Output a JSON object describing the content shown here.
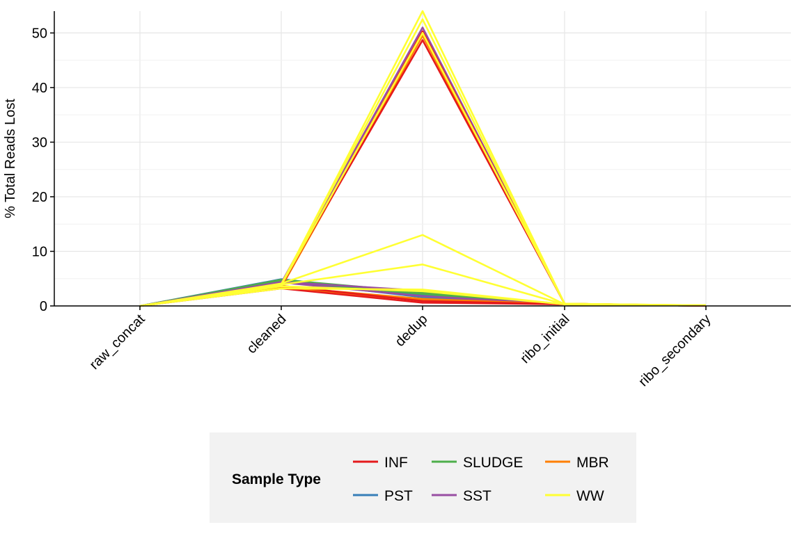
{
  "chart_data": {
    "type": "line",
    "title": "",
    "xlabel": "",
    "ylabel": "% Total Reads Lost",
    "categories": [
      "raw_concat",
      "cleaned",
      "dedup",
      "ribo_initial",
      "ribo_secondary"
    ],
    "ylim": [
      0,
      54
    ],
    "yticks": [
      0,
      10,
      20,
      30,
      40,
      50
    ],
    "grid": true,
    "legend": {
      "title": "Sample Type",
      "placement": "bottom",
      "entries": [
        {
          "label": "INF",
          "color": "#e41a1c"
        },
        {
          "label": "SLUDGE",
          "color": "#4daf4a"
        },
        {
          "label": "MBR",
          "color": "#ff7f00"
        },
        {
          "label": "PST",
          "color": "#377eb8"
        },
        {
          "label": "SST",
          "color": "#984ea3"
        },
        {
          "label": "WW",
          "color": "#ffff33"
        }
      ]
    },
    "series": [
      {
        "group": "PST",
        "color": "#377eb8",
        "values": [
          0,
          4.9,
          2.0,
          0.3,
          0.05
        ]
      },
      {
        "group": "PST",
        "color": "#377eb8",
        "values": [
          0,
          4.6,
          1.6,
          0.3,
          0.05
        ]
      },
      {
        "group": "SLUDGE",
        "color": "#4daf4a",
        "values": [
          0,
          4.8,
          2.5,
          0.3,
          0.05
        ]
      },
      {
        "group": "SLUDGE",
        "color": "#4daf4a",
        "values": [
          0,
          4.5,
          2.2,
          0.3,
          0.05
        ]
      },
      {
        "group": "SST",
        "color": "#984ea3",
        "values": [
          0,
          4.4,
          2.8,
          0.3,
          0.05
        ]
      },
      {
        "group": "SST",
        "color": "#984ea3",
        "values": [
          0,
          4.2,
          51.0,
          0.4,
          0.05
        ]
      },
      {
        "group": "SST",
        "color": "#984ea3",
        "values": [
          0,
          4.3,
          1.8,
          0.3,
          0.05
        ]
      },
      {
        "group": "MBR",
        "color": "#ff7f00",
        "values": [
          0,
          3.3,
          1.0,
          0.3,
          0.05
        ]
      },
      {
        "group": "MBR",
        "color": "#ff7f00",
        "values": [
          0,
          3.5,
          1.3,
          0.3,
          0.05
        ]
      },
      {
        "group": "MBR",
        "color": "#ff7f00",
        "values": [
          0,
          3.4,
          49.5,
          0.4,
          0.05
        ]
      },
      {
        "group": "INF",
        "color": "#e41a1c",
        "values": [
          0,
          3.9,
          48.7,
          0.4,
          0.05
        ]
      },
      {
        "group": "INF",
        "color": "#e41a1c",
        "values": [
          0,
          3.6,
          50.3,
          0.4,
          0.05
        ]
      },
      {
        "group": "INF",
        "color": "#e41a1c",
        "values": [
          0,
          3.2,
          0.6,
          0.3,
          0.05
        ]
      },
      {
        "group": "INF",
        "color": "#e41a1c",
        "values": [
          0,
          3.7,
          0.9,
          0.3,
          0.05
        ]
      },
      {
        "group": "WW",
        "color": "#ffff33",
        "values": [
          0,
          3.9,
          54.0,
          0.4,
          0.1
        ]
      },
      {
        "group": "WW",
        "color": "#ffff33",
        "values": [
          0,
          4.0,
          52.5,
          0.4,
          0.1
        ]
      },
      {
        "group": "WW",
        "color": "#ffff33",
        "values": [
          0,
          3.8,
          50.0,
          0.4,
          0.1
        ]
      },
      {
        "group": "WW",
        "color": "#ffff33",
        "values": [
          0,
          4.1,
          13.0,
          0.3,
          0.1
        ]
      },
      {
        "group": "WW",
        "color": "#ffff33",
        "values": [
          0,
          3.9,
          7.6,
          0.3,
          0.1
        ]
      },
      {
        "group": "WW",
        "color": "#ffff33",
        "values": [
          0,
          3.2,
          3.0,
          0.3,
          0.1
        ]
      },
      {
        "group": "WW",
        "color": "#ffff33",
        "values": [
          0,
          3.6,
          2.7,
          0.3,
          0.1
        ]
      }
    ]
  }
}
